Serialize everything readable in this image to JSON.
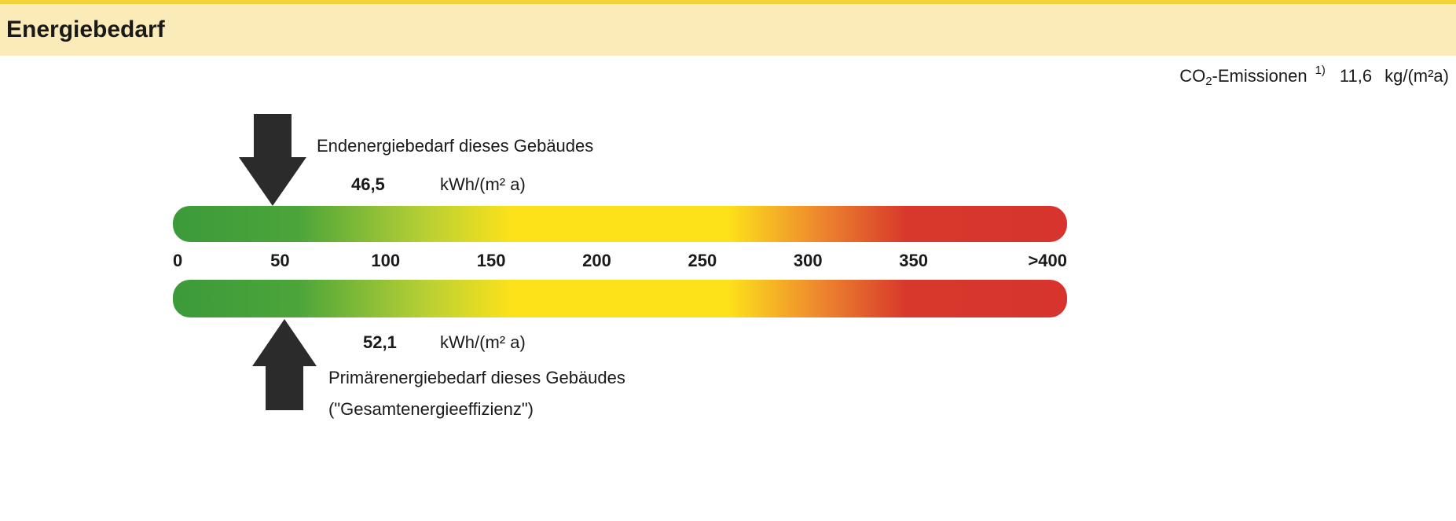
{
  "chart_data": {
    "type": "scale",
    "title": "Energiebedarf",
    "co2": {
      "label": "CO",
      "label_subscript": "2",
      "label_rest": "-Emissionen",
      "footnote": "1)",
      "value": 11.6,
      "value_label": "11,6",
      "unit": "kg/(m²a)"
    },
    "xlim": [
      0,
      400
    ],
    "xticks": [
      0,
      50,
      100,
      150,
      200,
      250,
      300,
      350,
      {
        "value": 400,
        "label": ">400"
      }
    ],
    "series": [
      {
        "name": "Endenergiebedarf dieses Gebäudes",
        "values": [
          46.5
        ],
        "value_labels": [
          "46,5"
        ],
        "unit": "kWh/(m² a)",
        "side": "top",
        "color": "#2b2b2b"
      },
      {
        "name": "Primärenergiebedarf dieses Gebäudes",
        "name_line2": "(\"Gesamtenergieeffizienz\")",
        "values": [
          52.1
        ],
        "value_labels": [
          "52,1"
        ],
        "unit": "kWh/(m² a)",
        "side": "bottom",
        "color": "#2b2b2b"
      }
    ]
  }
}
